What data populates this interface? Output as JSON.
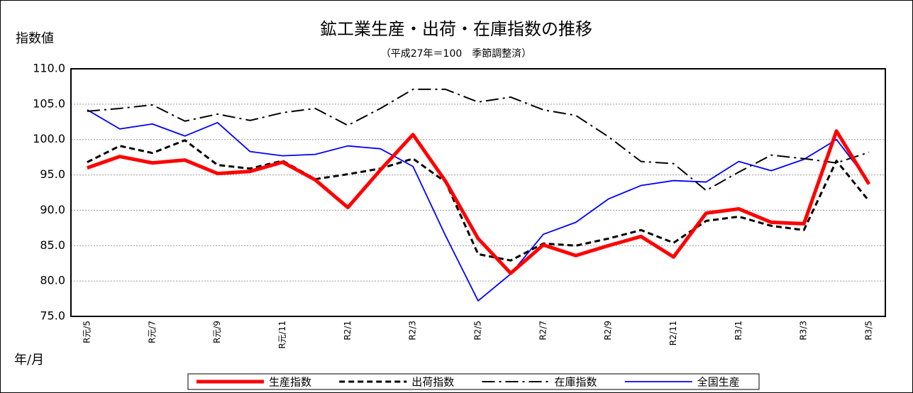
{
  "chart_data": {
    "type": "line",
    "title": "鉱工業生産・出荷・在庫指数の推移",
    "subtitle": "（平成27年＝100　季節調整済）",
    "y_label": "指数値",
    "x_label": "年/月",
    "categories": [
      "R元/5",
      null,
      "R元/7",
      null,
      "R元/9",
      null,
      "R元/11",
      null,
      "R2/1",
      null,
      "R2/3",
      null,
      "R2/5",
      null,
      "R2/7",
      null,
      "R2/9",
      null,
      "R2/11",
      null,
      "R3/1",
      null,
      "R3/3",
      null,
      "R3/5"
    ],
    "ylim": [
      75,
      110
    ],
    "yticks": [
      {
        "value": 75,
        "label": "75.0"
      },
      {
        "value": 80,
        "label": "80.0"
      },
      {
        "value": 85,
        "label": "85.0"
      },
      {
        "value": 90,
        "label": "90.0"
      },
      {
        "value": 95,
        "label": "95.0"
      },
      {
        "value": 100,
        "label": "100.0"
      },
      {
        "value": 105,
        "label": "105.0"
      },
      {
        "value": 110,
        "label": "110.0"
      }
    ],
    "grid": true,
    "legend": "bottom",
    "series": [
      {
        "name": "生産指数",
        "color": "#ff0000",
        "style": "thick",
        "values": [
          96.0,
          97.6,
          96.7,
          97.1,
          95.2,
          95.5,
          96.8,
          94.3,
          90.4,
          95.7,
          100.7,
          94.1,
          86.0,
          81.1,
          85.1,
          83.6,
          85.0,
          86.3,
          83.4,
          89.6,
          90.2,
          88.3,
          88.1,
          101.2,
          93.7
        ]
      },
      {
        "name": "出荷指数",
        "color": "#000000",
        "style": "dashed",
        "values": [
          96.8,
          99.1,
          98.1,
          99.9,
          96.4,
          95.9,
          97.0,
          94.4,
          95.1,
          95.9,
          97.3,
          94.0,
          83.8,
          82.9,
          85.3,
          85.0,
          86.0,
          87.2,
          85.4,
          88.5,
          89.1,
          87.8,
          87.2,
          97.0,
          91.3
        ]
      },
      {
        "name": "在庫指数",
        "color": "#000000",
        "style": "dashdot",
        "values": [
          104.0,
          104.4,
          104.9,
          102.6,
          103.6,
          102.7,
          103.8,
          104.4,
          102.0,
          104.4,
          107.1,
          107.1,
          105.3,
          106.0,
          104.2,
          103.4,
          100.4,
          96.9,
          96.6,
          92.8,
          95.4,
          97.8,
          97.3,
          96.7,
          98.2
        ]
      },
      {
        "name": "全国生産",
        "color": "#0000ff",
        "style": "solid",
        "values": [
          104.2,
          101.5,
          102.2,
          100.5,
          102.4,
          98.3,
          97.7,
          97.9,
          99.1,
          98.7,
          96.2,
          86.4,
          77.2,
          81.0,
          86.6,
          88.3,
          91.6,
          93.5,
          94.2,
          94.0,
          96.9,
          95.6,
          97.2,
          100.0,
          94.0
        ]
      }
    ]
  }
}
